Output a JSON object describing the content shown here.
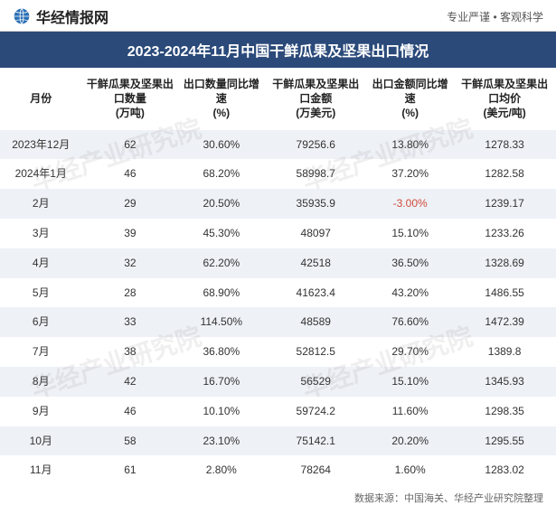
{
  "header": {
    "brand": "华经情报网",
    "tagline_left": "专业严谨",
    "tagline_sep": "•",
    "tagline_right": "客观科学",
    "brand_icon_fill": "#2b6fb5"
  },
  "title": "2023-2024年11月中国干鲜瓜果及坚果出口情况",
  "columns": [
    "月份",
    "干鲜瓜果及坚果出口数量\n(万吨)",
    "出口数量同比增速\n(%)",
    "干鲜瓜果及坚果出口金额\n(万美元)",
    "出口金额同比增速\n(%)",
    "干鲜瓜果及坚果出口均价\n(美元/吨)"
  ],
  "col_widths": [
    "78",
    "92",
    "82",
    "98",
    "82",
    "98"
  ],
  "rows": [
    {
      "month": "2023年12月",
      "qty": "62",
      "qty_yoy": "30.60%",
      "amt": "79256.6",
      "amt_yoy": "13.80%",
      "price": "1278.33"
    },
    {
      "month": "2024年1月",
      "qty": "46",
      "qty_yoy": "68.20%",
      "amt": "58998.7",
      "amt_yoy": "37.20%",
      "price": "1282.58"
    },
    {
      "month": "2月",
      "qty": "29",
      "qty_yoy": "20.50%",
      "amt": "35935.9",
      "amt_yoy": "-3.00%",
      "amt_yoy_neg": true,
      "price": "1239.17"
    },
    {
      "month": "3月",
      "qty": "39",
      "qty_yoy": "45.30%",
      "amt": "48097",
      "amt_yoy": "15.10%",
      "price": "1233.26"
    },
    {
      "month": "4月",
      "qty": "32",
      "qty_yoy": "62.20%",
      "amt": "42518",
      "amt_yoy": "36.50%",
      "price": "1328.69"
    },
    {
      "month": "5月",
      "qty": "28",
      "qty_yoy": "68.90%",
      "amt": "41623.4",
      "amt_yoy": "43.20%",
      "price": "1486.55"
    },
    {
      "month": "6月",
      "qty": "33",
      "qty_yoy": "114.50%",
      "amt": "48589",
      "amt_yoy": "76.60%",
      "price": "1472.39"
    },
    {
      "month": "7月",
      "qty": "38",
      "qty_yoy": "36.80%",
      "amt": "52812.5",
      "amt_yoy": "29.70%",
      "price": "1389.8"
    },
    {
      "month": "8月",
      "qty": "42",
      "qty_yoy": "16.70%",
      "amt": "56529",
      "amt_yoy": "15.10%",
      "price": "1345.93"
    },
    {
      "month": "9月",
      "qty": "46",
      "qty_yoy": "10.10%",
      "amt": "59724.2",
      "amt_yoy": "11.60%",
      "price": "1298.35"
    },
    {
      "month": "10月",
      "qty": "58",
      "qty_yoy": "23.10%",
      "amt": "75142.1",
      "amt_yoy": "20.20%",
      "price": "1295.55"
    },
    {
      "month": "11月",
      "qty": "61",
      "qty_yoy": "2.80%",
      "amt": "78264",
      "amt_yoy": "1.60%",
      "price": "1283.02"
    }
  ],
  "footer": {
    "label": "数据来源：",
    "source1": "中国海关、",
    "source2": "华经产业研究院整理"
  },
  "watermark_text": "华经产业研究院",
  "colors": {
    "title_bg": "#2b4a7a",
    "row_odd": "#eef1f6",
    "row_even": "#ffffff",
    "neg": "#d04a3a"
  }
}
